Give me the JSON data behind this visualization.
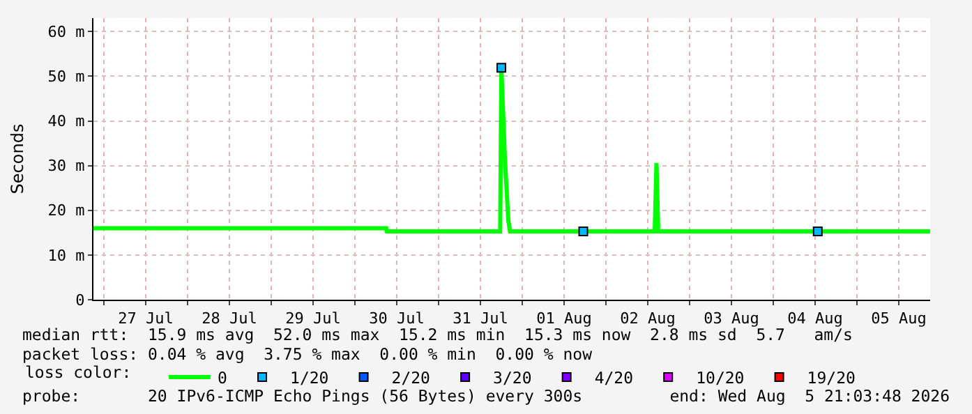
{
  "chart_data": {
    "type": "line",
    "ylabel": "Seconds",
    "x": [
      "2026-07-26T21:00",
      "2026-07-30T09:00",
      "2026-07-30T09:10",
      "2026-07-31T17:40",
      "2026-07-31T18:00",
      "2026-07-31T19:00",
      "2026-07-31T20:00",
      "2026-07-31T20:30",
      "2026-08-02T14:00",
      "2026-08-02T14:30",
      "2026-08-02T15:00",
      "2026-08-05T21:00"
    ],
    "series": [
      {
        "name": "0",
        "color": "#00ff00",
        "values": [
          16.0,
          16.0,
          15.3,
          15.3,
          52.0,
          31.9,
          17.8,
          15.3,
          15.3,
          30.6,
          15.3,
          15.3
        ]
      },
      {
        "name": "1/20",
        "color": "#00b8ff",
        "type": "scatter",
        "marker": "square",
        "x": [
          "2026-07-31T18:00",
          "2026-08-01T17:30",
          "2026-08-04T12:45"
        ],
        "values": [
          51.9,
          15.3,
          15.3
        ]
      },
      {
        "name": "2/20",
        "color": "#0059ff",
        "type": "scatter",
        "marker": "square",
        "values": [
          null,
          null,
          null,
          null,
          null,
          null,
          null,
          null,
          null,
          null,
          null,
          null
        ]
      },
      {
        "name": "3/20",
        "color": "#5e00ff",
        "type": "scatter",
        "marker": "square",
        "values": [
          null,
          null,
          null,
          null,
          null,
          null,
          null,
          null,
          null,
          null,
          null,
          null
        ]
      },
      {
        "name": "4/20",
        "color": "#7e00ff",
        "type": "scatter",
        "marker": "square",
        "values": [
          null,
          null,
          null,
          null,
          null,
          null,
          null,
          null,
          null,
          null,
          null,
          null
        ]
      },
      {
        "name": "10/20",
        "color": "#dd00ff",
        "type": "scatter",
        "marker": "square",
        "values": [
          null,
          null,
          null,
          null,
          null,
          null,
          null,
          null,
          null,
          null,
          null,
          null
        ]
      },
      {
        "name": "19/20",
        "color": "#ff0000",
        "type": "scatter",
        "marker": "square",
        "values": [
          null,
          null,
          null,
          null,
          null,
          null,
          null,
          null,
          null,
          null,
          null,
          null
        ]
      }
    ],
    "legend_title": "loss color:",
    "legend": "bottom left",
    "grid": true,
    "xlim": [
      "2026-07-26T21:00",
      "2026-08-05T21:00"
    ],
    "xticks": [
      {
        "value": "2026-07-27T00:00",
        "label": null
      },
      {
        "value": "2026-07-27T12:00",
        "label": "27 Jul"
      },
      {
        "value": "2026-07-28T00:00",
        "label": null
      },
      {
        "value": "2026-07-28T12:00",
        "label": "28 Jul"
      },
      {
        "value": "2026-07-29T00:00",
        "label": null
      },
      {
        "value": "2026-07-29T12:00",
        "label": "29 Jul"
      },
      {
        "value": "2026-07-30T00:00",
        "label": null
      },
      {
        "value": "2026-07-30T12:00",
        "label": "30 Jul"
      },
      {
        "value": "2026-07-31T00:00",
        "label": null
      },
      {
        "value": "2026-07-31T12:00",
        "label": "31 Jul"
      },
      {
        "value": "2026-08-01T00:00",
        "label": null
      },
      {
        "value": "2026-08-01T12:00",
        "label": "01 Aug"
      },
      {
        "value": "2026-08-02T00:00",
        "label": null
      },
      {
        "value": "2026-08-02T12:00",
        "label": "02 Aug"
      },
      {
        "value": "2026-08-03T00:00",
        "label": null
      },
      {
        "value": "2026-08-03T12:00",
        "label": "03 Aug"
      },
      {
        "value": "2026-08-04T00:00",
        "label": null
      },
      {
        "value": "2026-08-04T12:00",
        "label": "04 Aug"
      },
      {
        "value": "2026-08-05T00:00",
        "label": null
      },
      {
        "value": "2026-08-05T12:00",
        "label": "05 Aug"
      }
    ],
    "ylim": [
      0,
      63
    ],
    "yticks": [
      0,
      {
        "value": 10,
        "label": "10 m"
      },
      {
        "value": 20,
        "label": "20 m"
      },
      {
        "value": 30,
        "label": "30 m"
      },
      {
        "value": 40,
        "label": "40 m"
      },
      {
        "value": 50,
        "label": "50 m"
      },
      {
        "value": 60,
        "label": "60 m"
      }
    ],
    "annotations": [
      "median rtt:  15.9 ms avg  52.0 ms max  15.2 ms min  15.3 ms now  2.8 ms sd  5.7   am/s",
      "packet loss: 0.04 % avg  3.75 % max  0.00 % min  0.00 % now",
      "probe:       20 IPv6-ICMP Echo Pings (56 Bytes) every 300s",
      "end: Wed Aug  5 21:03:48 2026"
    ]
  }
}
